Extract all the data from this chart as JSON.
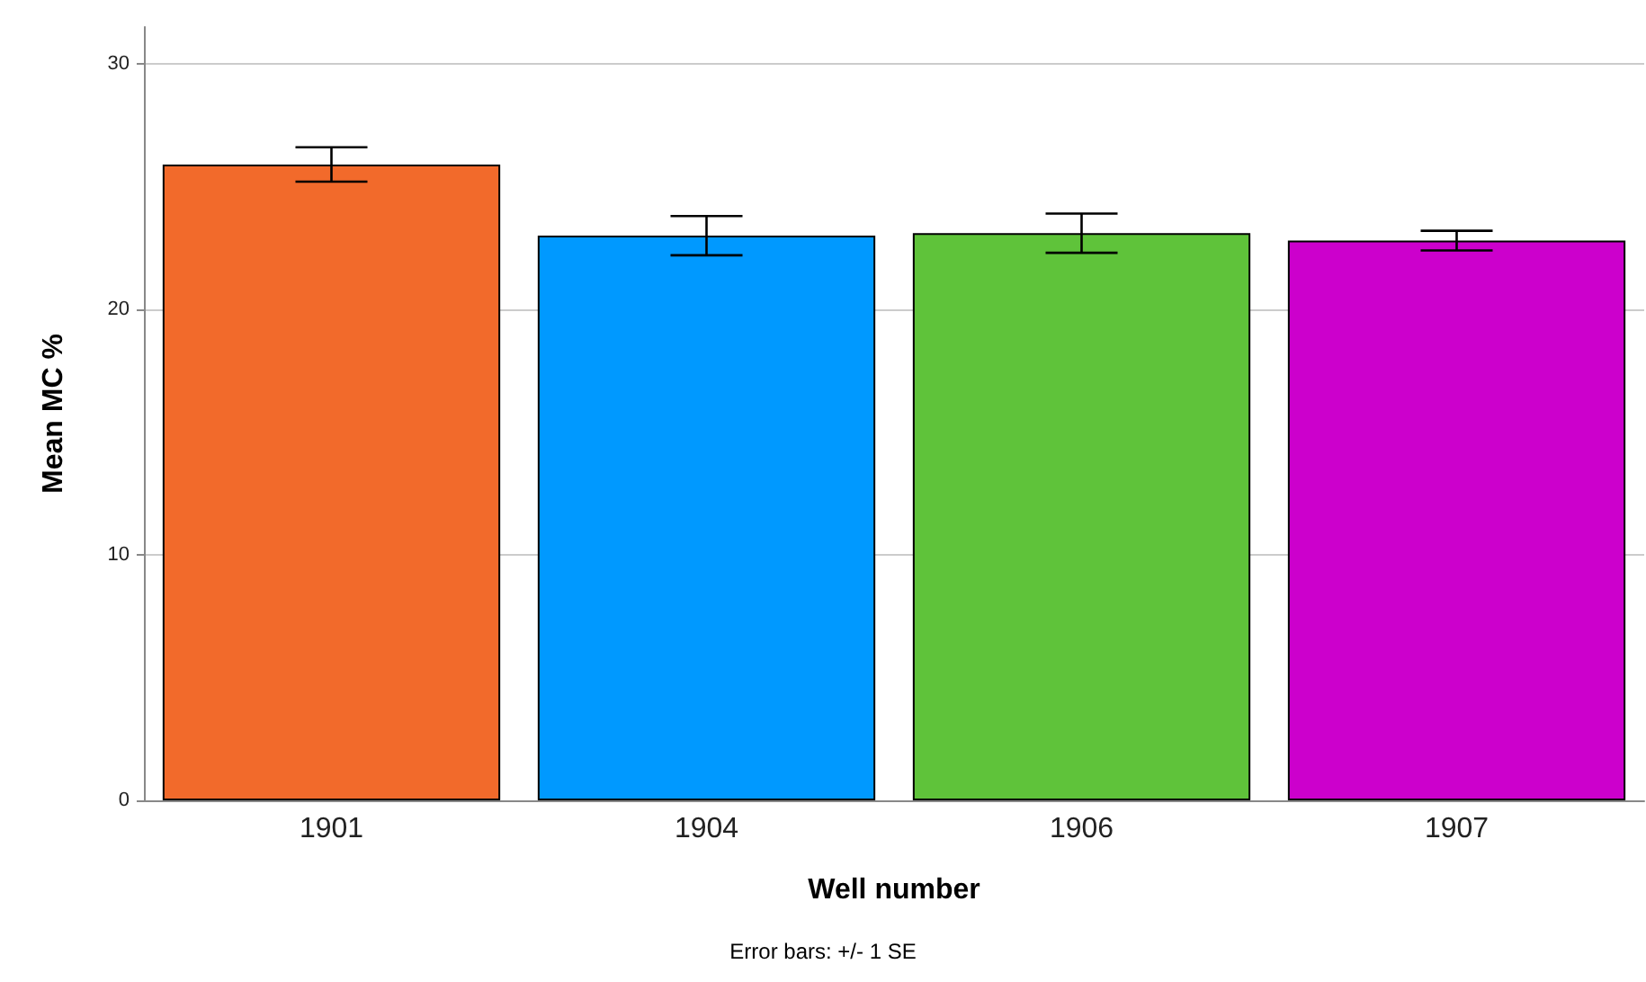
{
  "chart_data": {
    "type": "bar",
    "xlabel": "Well number",
    "ylabel": "Mean MC %",
    "categories": [
      "1901",
      "1904",
      "1906",
      "1907"
    ],
    "values": [
      25.9,
      23.0,
      23.1,
      22.8
    ],
    "colors": [
      "#f26a2b",
      "#0099ff",
      "#5fc33a",
      "#cc00cc"
    ],
    "errors": [
      0.7,
      0.8,
      0.8,
      0.4
    ],
    "ylim": [
      0,
      31.5
    ],
    "yticks": [
      0,
      10,
      20,
      30
    ],
    "grid": "y",
    "annotations": [
      "Error bars: +/- 1 SE"
    ]
  }
}
